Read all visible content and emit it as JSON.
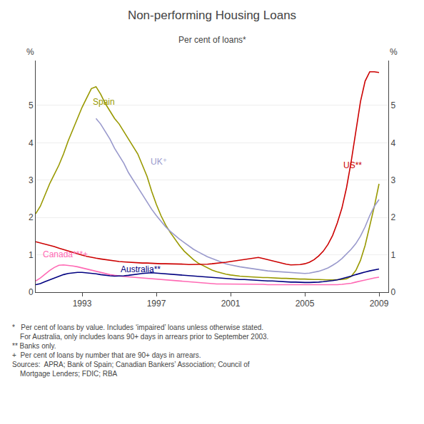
{
  "chart_data": {
    "type": "line",
    "title": "Non-performing Housing Loans",
    "subtitle": "Per cent of loans*",
    "ylabel_left": "%",
    "ylabel_right": "%",
    "xlim": [
      1990.5,
      2009.5
    ],
    "xticks": [
      1993,
      1997,
      2001,
      2005,
      2009
    ],
    "ylim": [
      0,
      6.2
    ],
    "yticks": [
      0,
      1,
      2,
      3,
      4,
      5
    ],
    "y2lim": [
      0,
      6.2
    ],
    "y2ticks": [
      0,
      1,
      2,
      3,
      4,
      5
    ],
    "grid": true,
    "footnote_lines": [
      "*   Per cent of loans by value. Includes ‘impaired’ loans unless otherwise stated.",
      "    For Australia, only includes loans 90+ days in arrears prior to September 2003.",
      "** Banks only.",
      "+  Per cent of loans by number that are 90+ days in arrears.",
      "Sources:  APRA; Bank of Spain; Canadian Bankers’ Association; Council of",
      "    Mortgage Lenders; FDIC; RBA"
    ],
    "series": [
      {
        "name": "Spain",
        "color": "#999900",
        "label_x": 1993.5,
        "label_y": 5.1,
        "x": [
          1990.5,
          1990.75,
          1991.0,
          1991.25,
          1991.5,
          1991.75,
          1992.0,
          1992.25,
          1992.5,
          1992.75,
          1993.0,
          1993.25,
          1993.5,
          1993.75,
          1994.0,
          1994.25,
          1994.5,
          1994.75,
          1995.0,
          1995.25,
          1995.5,
          1995.75,
          1996.0,
          1996.25,
          1996.5,
          1996.75,
          1997.0,
          1997.25,
          1997.5,
          1997.75,
          1998.0,
          1998.25,
          1998.5,
          1998.75,
          1999.0,
          1999.25,
          1999.5,
          1999.75,
          2000.0,
          2000.25,
          2000.5,
          2000.75,
          2001.0,
          2001.25,
          2001.5,
          2001.75,
          2002.0,
          2002.25,
          2002.5,
          2002.75,
          2003.0,
          2003.25,
          2003.5,
          2003.75,
          2004.0,
          2004.25,
          2004.5,
          2004.75,
          2005.0,
          2005.25,
          2005.5,
          2005.75,
          2006.0,
          2006.25,
          2006.5,
          2006.75,
          2007.0,
          2007.25,
          2007.5,
          2007.75,
          2008.0,
          2008.25,
          2008.5,
          2008.75,
          2009.0
        ],
        "values": [
          2.1,
          2.3,
          2.6,
          2.9,
          3.15,
          3.4,
          3.7,
          4.05,
          4.35,
          4.65,
          4.95,
          5.2,
          5.45,
          5.5,
          5.3,
          5.05,
          4.85,
          4.65,
          4.5,
          4.3,
          4.1,
          3.9,
          3.7,
          3.4,
          3.1,
          2.7,
          2.35,
          2.05,
          1.8,
          1.6,
          1.42,
          1.25,
          1.1,
          0.98,
          0.87,
          0.78,
          0.72,
          0.65,
          0.59,
          0.55,
          0.51,
          0.48,
          0.46,
          0.44,
          0.43,
          0.42,
          0.41,
          0.4,
          0.4,
          0.39,
          0.39,
          0.38,
          0.38,
          0.37,
          0.37,
          0.36,
          0.36,
          0.35,
          0.35,
          0.34,
          0.34,
          0.34,
          0.33,
          0.33,
          0.33,
          0.33,
          0.34,
          0.36,
          0.42,
          0.58,
          0.85,
          1.25,
          1.75,
          2.3,
          2.9
        ]
      },
      {
        "name": "UK⁺",
        "color": "#9999CC",
        "label_x": 1996.6,
        "label_y": 3.5,
        "x": [
          1993.75,
          1994.0,
          1994.25,
          1994.5,
          1994.75,
          1995.0,
          1995.25,
          1995.5,
          1995.75,
          1996.0,
          1996.25,
          1996.5,
          1996.75,
          1997.0,
          1997.25,
          1997.5,
          1997.75,
          1998.0,
          1998.25,
          1998.5,
          1998.75,
          1999.0,
          1999.25,
          1999.5,
          1999.75,
          2000.0,
          2000.25,
          2000.5,
          2000.75,
          2001.0,
          2001.25,
          2001.5,
          2001.75,
          2002.0,
          2002.25,
          2002.5,
          2002.75,
          2003.0,
          2003.25,
          2003.5,
          2003.75,
          2004.0,
          2004.25,
          2004.5,
          2004.75,
          2005.0,
          2005.25,
          2005.5,
          2005.75,
          2006.0,
          2006.25,
          2006.5,
          2006.75,
          2007.0,
          2007.25,
          2007.5,
          2007.75,
          2008.0,
          2008.25,
          2008.5,
          2008.75,
          2009.0
        ],
        "values": [
          4.65,
          4.5,
          4.3,
          4.1,
          3.85,
          3.65,
          3.45,
          3.2,
          3.0,
          2.8,
          2.6,
          2.4,
          2.22,
          2.05,
          1.9,
          1.75,
          1.63,
          1.52,
          1.42,
          1.33,
          1.24,
          1.15,
          1.08,
          1.01,
          0.95,
          0.9,
          0.85,
          0.8,
          0.76,
          0.73,
          0.7,
          0.68,
          0.66,
          0.64,
          0.62,
          0.6,
          0.58,
          0.57,
          0.56,
          0.55,
          0.54,
          0.53,
          0.52,
          0.51,
          0.51,
          0.5,
          0.51,
          0.53,
          0.56,
          0.6,
          0.65,
          0.72,
          0.8,
          0.9,
          1.02,
          1.15,
          1.3,
          1.5,
          1.75,
          2.05,
          2.3,
          2.48
        ]
      },
      {
        "name": "US**",
        "color": "#CC0000",
        "label_x": 2007.0,
        "label_y": 3.4,
        "x": [
          1990.5,
          1990.75,
          1991.0,
          1991.25,
          1991.5,
          1991.75,
          1992.0,
          1992.25,
          1992.5,
          1992.75,
          1993.0,
          1993.25,
          1993.5,
          1993.75,
          1994.0,
          1994.25,
          1994.5,
          1994.75,
          1995.0,
          1995.25,
          1995.5,
          1995.75,
          1996.0,
          1996.25,
          1996.5,
          1996.75,
          1997.0,
          1997.25,
          1997.5,
          1997.75,
          1998.0,
          1998.25,
          1998.5,
          1998.75,
          1999.0,
          1999.25,
          1999.5,
          1999.75,
          2000.0,
          2000.25,
          2000.5,
          2000.75,
          2001.0,
          2001.25,
          2001.5,
          2001.75,
          2002.0,
          2002.25,
          2002.5,
          2002.75,
          2003.0,
          2003.25,
          2003.5,
          2003.75,
          2004.0,
          2004.25,
          2004.5,
          2004.75,
          2005.0,
          2005.25,
          2005.5,
          2005.75,
          2006.0,
          2006.25,
          2006.5,
          2006.75,
          2007.0,
          2007.25,
          2007.5,
          2007.75,
          2008.0,
          2008.25,
          2008.5,
          2008.75,
          2009.0
        ],
        "values": [
          1.35,
          1.32,
          1.28,
          1.25,
          1.22,
          1.18,
          1.14,
          1.1,
          1.06,
          1.02,
          0.99,
          0.96,
          0.93,
          0.91,
          0.89,
          0.87,
          0.85,
          0.83,
          0.82,
          0.81,
          0.8,
          0.79,
          0.79,
          0.78,
          0.78,
          0.77,
          0.77,
          0.76,
          0.76,
          0.76,
          0.75,
          0.75,
          0.75,
          0.74,
          0.74,
          0.74,
          0.74,
          0.75,
          0.76,
          0.77,
          0.78,
          0.8,
          0.82,
          0.84,
          0.86,
          0.88,
          0.9,
          0.92,
          0.93,
          0.9,
          0.87,
          0.84,
          0.8,
          0.77,
          0.75,
          0.73,
          0.73,
          0.74,
          0.76,
          0.8,
          0.87,
          0.97,
          1.1,
          1.28,
          1.52,
          1.85,
          2.25,
          2.8,
          3.5,
          4.3,
          5.1,
          5.65,
          5.9,
          5.9,
          5.88
        ]
      },
      {
        "name": "Canada***+",
        "color": "#FF69B4",
        "label_x": 1990.8,
        "label_y": 1.02,
        "x": [
          1990.5,
          1990.75,
          1991.0,
          1991.25,
          1991.5,
          1991.75,
          1992.0,
          1992.25,
          1992.5,
          1992.75,
          1993.0,
          1993.25,
          1993.5,
          1993.75,
          1994.0,
          1994.25,
          1994.5,
          1994.75,
          1995.0,
          1995.25,
          1995.5,
          1995.75,
          1996.0,
          1996.25,
          1996.5,
          1996.75,
          1997.0,
          1997.25,
          1997.5,
          1997.75,
          1998.0,
          1998.25,
          1998.5,
          1998.75,
          1999.0,
          1999.25,
          1999.5,
          1999.75,
          2000.0,
          2000.25,
          2000.5,
          2000.75,
          2001.0,
          2001.25,
          2001.5,
          2001.75,
          2002.0,
          2002.25,
          2002.5,
          2002.75,
          2003.0,
          2003.25,
          2003.5,
          2003.75,
          2004.0,
          2004.25,
          2004.5,
          2004.75,
          2005.0,
          2005.25,
          2005.5,
          2005.75,
          2006.0,
          2006.25,
          2006.5,
          2006.75,
          2007.0,
          2007.25,
          2007.5,
          2007.75,
          2008.0,
          2008.25,
          2008.5,
          2008.75,
          2009.0
        ],
        "values": [
          0.3,
          0.38,
          0.48,
          0.58,
          0.66,
          0.72,
          0.73,
          0.72,
          0.7,
          0.68,
          0.65,
          0.62,
          0.59,
          0.56,
          0.52,
          0.49,
          0.47,
          0.45,
          0.43,
          0.42,
          0.41,
          0.4,
          0.38,
          0.37,
          0.36,
          0.35,
          0.34,
          0.33,
          0.32,
          0.31,
          0.3,
          0.29,
          0.28,
          0.27,
          0.26,
          0.25,
          0.24,
          0.23,
          0.23,
          0.22,
          0.22,
          0.22,
          0.22,
          0.22,
          0.22,
          0.21,
          0.21,
          0.21,
          0.21,
          0.21,
          0.2,
          0.2,
          0.2,
          0.2,
          0.2,
          0.19,
          0.19,
          0.19,
          0.19,
          0.19,
          0.19,
          0.19,
          0.19,
          0.19,
          0.2,
          0.2,
          0.21,
          0.22,
          0.24,
          0.27,
          0.3,
          0.33,
          0.36,
          0.38,
          0.4
        ]
      },
      {
        "name": "Australia**",
        "color": "#000080",
        "label_x": 1995.0,
        "label_y": 0.62,
        "x": [
          1990.5,
          1990.75,
          1991.0,
          1991.25,
          1991.5,
          1991.75,
          1992.0,
          1992.25,
          1992.5,
          1992.75,
          1993.0,
          1993.25,
          1993.5,
          1993.75,
          1994.0,
          1994.25,
          1994.5,
          1994.75,
          1995.0,
          1995.25,
          1995.5,
          1995.75,
          1996.0,
          1996.25,
          1996.5,
          1996.75,
          1997.0,
          1997.25,
          1997.5,
          1997.75,
          1998.0,
          1998.25,
          1998.5,
          1998.75,
          1999.0,
          1999.25,
          1999.5,
          1999.75,
          2000.0,
          2000.25,
          2000.5,
          2000.75,
          2001.0,
          2001.25,
          2001.5,
          2001.75,
          2002.0,
          2002.25,
          2002.5,
          2002.75,
          2003.0,
          2003.25,
          2003.5,
          2003.75,
          2004.0,
          2004.25,
          2004.5,
          2004.75,
          2005.0,
          2005.25,
          2005.5,
          2005.75,
          2006.0,
          2006.25,
          2006.5,
          2006.75,
          2007.0,
          2007.25,
          2007.5,
          2007.75,
          2008.0,
          2008.25,
          2008.5,
          2008.75,
          2009.0
        ],
        "values": [
          0.2,
          0.23,
          0.28,
          0.33,
          0.38,
          0.43,
          0.47,
          0.5,
          0.52,
          0.53,
          0.53,
          0.52,
          0.51,
          0.49,
          0.47,
          0.45,
          0.44,
          0.43,
          0.43,
          0.44,
          0.45,
          0.47,
          0.49,
          0.5,
          0.51,
          0.52,
          0.51,
          0.5,
          0.49,
          0.48,
          0.47,
          0.46,
          0.45,
          0.44,
          0.43,
          0.42,
          0.41,
          0.4,
          0.39,
          0.38,
          0.37,
          0.36,
          0.35,
          0.35,
          0.34,
          0.34,
          0.33,
          0.32,
          0.32,
          0.31,
          0.3,
          0.3,
          0.29,
          0.28,
          0.28,
          0.27,
          0.27,
          0.26,
          0.26,
          0.26,
          0.26,
          0.27,
          0.28,
          0.29,
          0.31,
          0.33,
          0.36,
          0.39,
          0.43,
          0.47,
          0.51,
          0.54,
          0.57,
          0.59,
          0.62
        ]
      }
    ]
  }
}
